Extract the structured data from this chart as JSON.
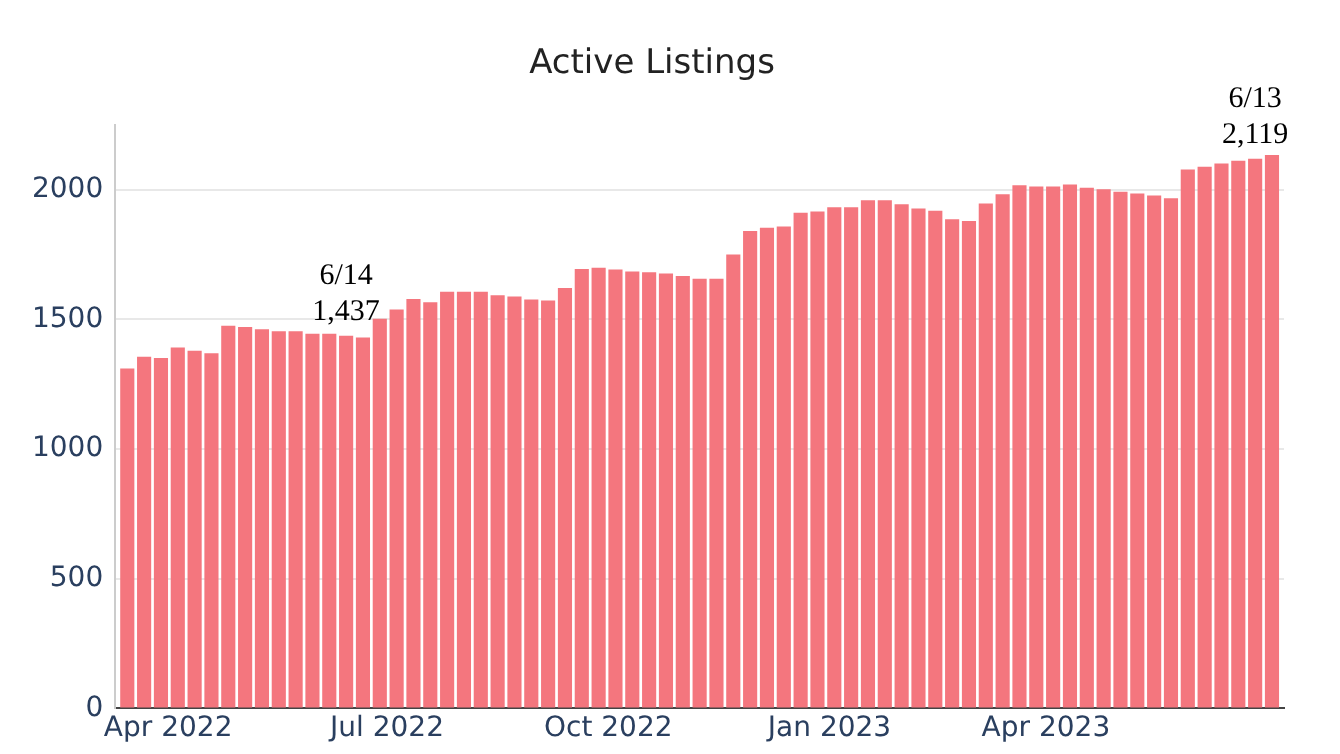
{
  "chart_data": {
    "type": "bar",
    "title": "Active Listings",
    "x": [
      "2022-03-15",
      "2022-03-22",
      "2022-03-29",
      "2022-04-05",
      "2022-04-12",
      "2022-04-19",
      "2022-04-26",
      "2022-05-03",
      "2022-05-10",
      "2022-05-17",
      "2022-05-24",
      "2022-05-31",
      "2022-06-07",
      "2022-06-14",
      "2022-06-21",
      "2022-06-28",
      "2022-07-05",
      "2022-07-12",
      "2022-07-19",
      "2022-07-26",
      "2022-08-02",
      "2022-08-09",
      "2022-08-16",
      "2022-08-23",
      "2022-08-30",
      "2022-09-06",
      "2022-09-13",
      "2022-09-20",
      "2022-09-27",
      "2022-10-04",
      "2022-10-11",
      "2022-10-18",
      "2022-10-25",
      "2022-11-01",
      "2022-11-08",
      "2022-11-15",
      "2022-11-22",
      "2022-11-29",
      "2022-12-06",
      "2022-12-13",
      "2022-12-20",
      "2022-12-27",
      "2023-01-03",
      "2023-01-10",
      "2023-01-17",
      "2023-01-24",
      "2023-01-31",
      "2023-02-07",
      "2023-02-14",
      "2023-02-21",
      "2023-02-28",
      "2023-03-07",
      "2023-03-14",
      "2023-03-21",
      "2023-03-28",
      "2023-04-04",
      "2023-04-11",
      "2023-04-18",
      "2023-04-25",
      "2023-05-02",
      "2023-05-09",
      "2023-05-16",
      "2023-05-23",
      "2023-05-30",
      "2023-06-06",
      "2023-06-13",
      "2023-06-20",
      "2023-06-27",
      "2023-07-04"
    ],
    "values": [
      1310,
      1356,
      1351,
      1391,
      1379,
      1369,
      1475,
      1470,
      1462,
      1454,
      1454,
      1444,
      1444,
      1437,
      1430,
      1502,
      1538,
      1578,
      1566,
      1606,
      1606,
      1606,
      1593,
      1588,
      1576,
      1573,
      1621,
      1694,
      1699,
      1692,
      1684,
      1682,
      1677,
      1667,
      1656,
      1656,
      1750,
      1841,
      1853,
      1858,
      1911,
      1916,
      1932,
      1932,
      1959,
      1959,
      1944,
      1927,
      1919,
      1886,
      1879,
      1947,
      1982,
      2017,
      2012,
      2012,
      2020,
      2007,
      2002,
      1992,
      1985,
      1977,
      1967,
      2078,
      2088,
      2101,
      2111,
      2119,
      2134
    ],
    "color": "#f4767e",
    "xlim": [
      "2022-03-10",
      "2023-07-09"
    ],
    "xticks": [
      {
        "value": "2022-04-01",
        "label": "Apr 2022"
      },
      {
        "value": "2022-07-01",
        "label": "Jul 2022"
      },
      {
        "value": "2022-10-01",
        "label": "Oct 2022"
      },
      {
        "value": "2023-01-01",
        "label": "Jan 2023"
      },
      {
        "value": "2023-04-01",
        "label": "Apr 2023"
      }
    ],
    "ylim": [
      0,
      2250
    ],
    "yticks": [
      0,
      500,
      1000,
      1500,
      2000
    ],
    "grid": "y",
    "legend": false,
    "annotations": [
      {
        "text": "6/14\n1,437",
        "x": "2022-06-14",
        "y": 1437
      },
      {
        "text": "6/13\n2,119",
        "x": "2023-06-27",
        "y": 2119
      }
    ]
  }
}
